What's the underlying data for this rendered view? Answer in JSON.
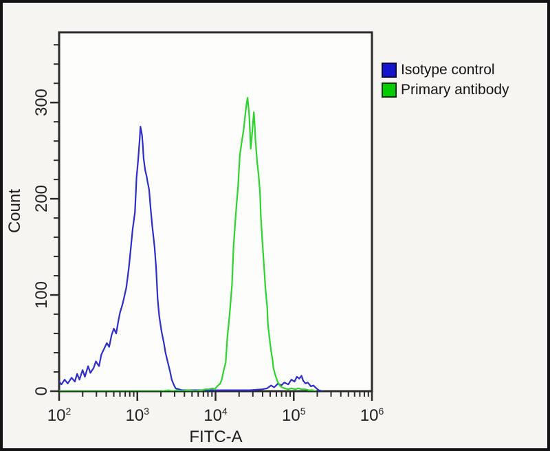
{
  "figure": {
    "background": "#f6f5f1",
    "frame_color": "#141414",
    "axis_color": "#2b2b2b",
    "plot_background": "#fdfdfc"
  },
  "legend": {
    "items": [
      {
        "label": "Isotype control",
        "color": "#1414cc",
        "border": "#0a0a3a"
      },
      {
        "label": "Primary antibody",
        "color": "#00cc00",
        "border": "#0a330a"
      }
    ]
  },
  "chart_data": {
    "type": "line",
    "subtype": "flow-cytometry-histogram-overlay",
    "title": "",
    "xlabel": "FITC-A",
    "ylabel": "Count",
    "x_scale": "log10",
    "x_range_log10": [
      2,
      6
    ],
    "ylim": [
      0,
      373
    ],
    "y_minor_step": 20,
    "grid": false,
    "legend_position": "outside-top-right",
    "x_ticks": [
      {
        "base": "10",
        "exp": "2",
        "log10": 2
      },
      {
        "base": "10",
        "exp": "3",
        "log10": 3
      },
      {
        "base": "10",
        "exp": "4",
        "log10": 4
      },
      {
        "base": "10",
        "exp": "5",
        "log10": 5
      },
      {
        "base": "10",
        "exp": "6",
        "log10": 6
      }
    ],
    "y_ticks": [
      {
        "label": "0",
        "value": 0
      },
      {
        "label": "100",
        "value": 100
      },
      {
        "label": "200",
        "value": 200
      },
      {
        "label": "300",
        "value": 300
      }
    ],
    "series": [
      {
        "name": "Isotype control",
        "color": "#2d2dc8",
        "peak_x": 1100,
        "peak_count": 275,
        "points_log10x_count": [
          [
            2.0,
            10
          ],
          [
            2.03,
            7
          ],
          [
            2.07,
            12
          ],
          [
            2.11,
            8
          ],
          [
            2.16,
            14
          ],
          [
            2.2,
            10
          ],
          [
            2.23,
            18
          ],
          [
            2.26,
            12
          ],
          [
            2.3,
            22
          ],
          [
            2.33,
            15
          ],
          [
            2.37,
            26
          ],
          [
            2.4,
            19
          ],
          [
            2.44,
            24
          ],
          [
            2.47,
            31
          ],
          [
            2.51,
            26
          ],
          [
            2.54,
            38
          ],
          [
            2.58,
            45
          ],
          [
            2.61,
            50
          ],
          [
            2.64,
            46
          ],
          [
            2.67,
            58
          ],
          [
            2.7,
            65
          ],
          [
            2.73,
            60
          ],
          [
            2.76,
            74
          ],
          [
            2.78,
            82
          ],
          [
            2.81,
            90
          ],
          [
            2.83,
            97
          ],
          [
            2.86,
            108
          ],
          [
            2.89,
            127
          ],
          [
            2.91,
            143
          ],
          [
            2.94,
            168
          ],
          [
            2.97,
            186
          ],
          [
            2.99,
            222
          ],
          [
            3.01,
            240
          ],
          [
            3.03,
            262
          ],
          [
            3.04,
            275
          ],
          [
            3.06,
            266
          ],
          [
            3.07,
            256
          ],
          [
            3.08,
            242
          ],
          [
            3.1,
            230
          ],
          [
            3.12,
            223
          ],
          [
            3.13,
            218
          ],
          [
            3.15,
            210
          ],
          [
            3.17,
            190
          ],
          [
            3.19,
            172
          ],
          [
            3.2,
            165
          ],
          [
            3.22,
            150
          ],
          [
            3.24,
            128
          ],
          [
            3.26,
            96
          ],
          [
            3.28,
            78
          ],
          [
            3.31,
            62
          ],
          [
            3.34,
            50
          ],
          [
            3.36,
            40
          ],
          [
            3.39,
            30
          ],
          [
            3.42,
            20
          ],
          [
            3.44,
            12
          ],
          [
            3.47,
            6
          ],
          [
            3.49,
            3
          ],
          [
            3.53,
            2
          ],
          [
            3.57,
            1
          ],
          [
            3.65,
            1
          ],
          [
            3.79,
            1
          ],
          [
            3.92,
            1
          ],
          [
            4.18,
            1
          ],
          [
            4.44,
            1
          ],
          [
            4.6,
            2
          ],
          [
            4.66,
            3
          ],
          [
            4.71,
            6
          ],
          [
            4.75,
            4
          ],
          [
            4.8,
            8
          ],
          [
            4.84,
            6
          ],
          [
            4.88,
            9
          ],
          [
            4.93,
            7
          ],
          [
            4.97,
            12
          ],
          [
            5.01,
            10
          ],
          [
            5.04,
            15
          ],
          [
            5.07,
            13
          ],
          [
            5.1,
            16
          ],
          [
            5.12,
            11
          ],
          [
            5.15,
            8
          ],
          [
            5.18,
            9
          ],
          [
            5.22,
            5
          ],
          [
            5.25,
            6
          ],
          [
            5.29,
            3
          ],
          [
            5.32,
            1
          ],
          [
            5.37,
            0
          ]
        ]
      },
      {
        "name": "Primary antibody",
        "color": "#2ed32e",
        "peak_x": 26000,
        "peak_count": 305,
        "points_log10x_count": [
          [
            2.0,
            0
          ],
          [
            3.3,
            0
          ],
          [
            3.4,
            1
          ],
          [
            3.45,
            0
          ],
          [
            3.5,
            1
          ],
          [
            3.57,
            0
          ],
          [
            3.65,
            1
          ],
          [
            3.74,
            0
          ],
          [
            3.83,
            1
          ],
          [
            3.87,
            2
          ],
          [
            3.92,
            2
          ],
          [
            3.96,
            3
          ],
          [
            3.99,
            2
          ],
          [
            4.02,
            5
          ],
          [
            4.06,
            8
          ],
          [
            4.08,
            12
          ],
          [
            4.1,
            20
          ],
          [
            4.13,
            30
          ],
          [
            4.15,
            55
          ],
          [
            4.18,
            80
          ],
          [
            4.21,
            110
          ],
          [
            4.23,
            150
          ],
          [
            4.26,
            185
          ],
          [
            4.29,
            215
          ],
          [
            4.31,
            245
          ],
          [
            4.34,
            262
          ],
          [
            4.36,
            272
          ],
          [
            4.37,
            280
          ],
          [
            4.39,
            295
          ],
          [
            4.41,
            305
          ],
          [
            4.43,
            288
          ],
          [
            4.44,
            270
          ],
          [
            4.45,
            252
          ],
          [
            4.47,
            270
          ],
          [
            4.49,
            290
          ],
          [
            4.5,
            278
          ],
          [
            4.51,
            262
          ],
          [
            4.53,
            240
          ],
          [
            4.55,
            225
          ],
          [
            4.57,
            205
          ],
          [
            4.58,
            180
          ],
          [
            4.6,
            155
          ],
          [
            4.62,
            130
          ],
          [
            4.64,
            105
          ],
          [
            4.66,
            88
          ],
          [
            4.67,
            70
          ],
          [
            4.69,
            55
          ],
          [
            4.71,
            42
          ],
          [
            4.73,
            32
          ],
          [
            4.74,
            24
          ],
          [
            4.76,
            18
          ],
          [
            4.78,
            13
          ],
          [
            4.8,
            9
          ],
          [
            4.82,
            6
          ],
          [
            4.85,
            4
          ],
          [
            4.88,
            3
          ],
          [
            4.93,
            2
          ],
          [
            4.97,
            3
          ],
          [
            5.02,
            2
          ],
          [
            5.06,
            3
          ],
          [
            5.1,
            2
          ],
          [
            5.15,
            2
          ],
          [
            5.19,
            1
          ],
          [
            5.24,
            1
          ],
          [
            5.28,
            0
          ]
        ]
      }
    ]
  }
}
